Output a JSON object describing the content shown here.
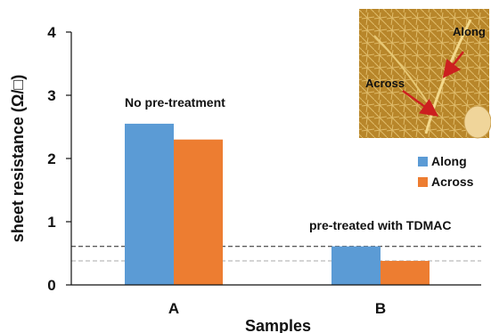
{
  "chart_data": {
    "type": "bar",
    "xlabel": "Samples",
    "ylabel": "sheet resistance (Ω/□)",
    "categories": [
      "A",
      "B"
    ],
    "series": [
      {
        "name": "Along",
        "values": [
          2.55,
          0.61
        ],
        "color": "#5b9bd5"
      },
      {
        "name": "Across",
        "values": [
          2.3,
          0.38
        ],
        "color": "#ed7d31"
      }
    ],
    "ylim": [
      0,
      4
    ],
    "yticks": [
      "0",
      "1",
      "2",
      "3",
      "4"
    ],
    "grid": false,
    "legend_position": "right",
    "annotations": [
      {
        "text": "No pre-treatment",
        "category": "A"
      },
      {
        "text": "pre-treated with TDMAC",
        "category": "B"
      }
    ],
    "reference_lines": [
      {
        "value": 0.61,
        "style": "dashed",
        "color": "#222222"
      },
      {
        "value": 0.38,
        "style": "dashed",
        "color": "#aaaaaa"
      }
    ],
    "inset": {
      "description_colors": {
        "background": "#b8862a",
        "arrow": "#cc1f1f"
      },
      "labels": [
        "Along",
        "Across"
      ]
    }
  }
}
